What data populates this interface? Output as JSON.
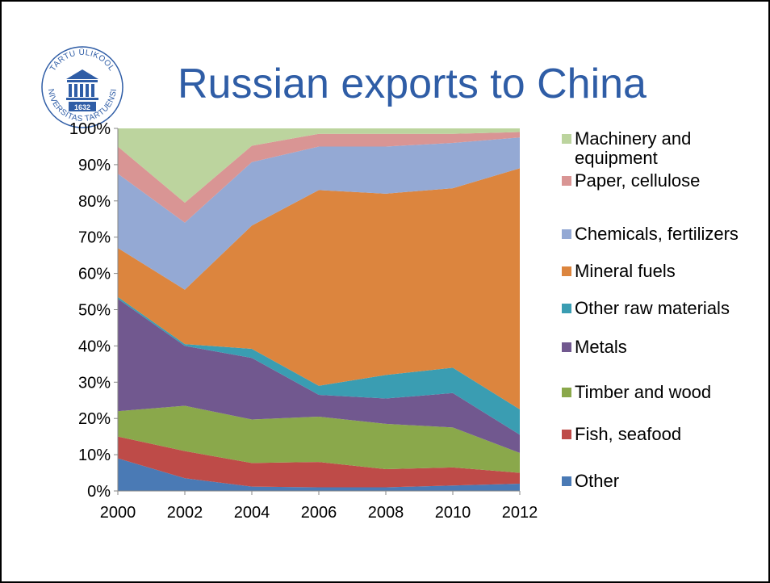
{
  "slide": {
    "title": "Russian exports to China",
    "logo": {
      "ring_text": "TARTU ÜLIKOOL · UNIVERSITAS TARTUENSIS",
      "year": "1632",
      "icon": "university-building-icon",
      "color": "#2f5da6"
    }
  },
  "chart_data": {
    "type": "area",
    "stacked": true,
    "percent": true,
    "x": [
      2000,
      2002,
      2004,
      2006,
      2008,
      2010,
      2012
    ],
    "ylim": [
      0,
      100
    ],
    "yticks": [
      "0%",
      "10%",
      "20%",
      "30%",
      "40%",
      "50%",
      "60%",
      "70%",
      "80%",
      "90%",
      "100%"
    ],
    "xticks": [
      "2000",
      "2002",
      "2004",
      "2006",
      "2008",
      "2010",
      "2012"
    ],
    "grid": false,
    "legend_position": "right",
    "title": "",
    "xlabel": "",
    "ylabel": "",
    "series": [
      {
        "name": "Other",
        "color": "#4a7ab5",
        "values": [
          9,
          3.5,
          1.2,
          1,
          1,
          1.5,
          2
        ]
      },
      {
        "name": "Fish, seafood",
        "color": "#be4b48",
        "values": [
          6,
          7.5,
          6.5,
          7,
          5,
          5,
          3
        ]
      },
      {
        "name": "Timber and wood",
        "color": "#8aa84b",
        "values": [
          7,
          12.5,
          12,
          12.5,
          12.5,
          11,
          5.5
        ]
      },
      {
        "name": "Metals",
        "color": "#71588f",
        "values": [
          31,
          16.5,
          17,
          6,
          7,
          9.5,
          5
        ]
      },
      {
        "name": "Other raw materials",
        "color": "#3a9db2",
        "values": [
          0.5,
          0.5,
          2.5,
          2.5,
          6.5,
          7,
          7
        ]
      },
      {
        "name": "Mineral fuels",
        "color": "#dc853e",
        "values": [
          13.5,
          15,
          34,
          54,
          50,
          49.5,
          66.5
        ]
      },
      {
        "name": "Chemicals, fertilizers",
        "color": "#94a9d4",
        "values": [
          20.5,
          18.5,
          17.5,
          12,
          13,
          12.5,
          8.5
        ]
      },
      {
        "name": "Paper, cellulose",
        "color": "#d99594",
        "values": [
          7.5,
          5.5,
          4.5,
          3.5,
          3.5,
          2.5,
          1.5
        ]
      },
      {
        "name": "Machinery and equipment",
        "color": "#bcd49e",
        "values": [
          5,
          20.5,
          4.8,
          1.5,
          1.5,
          1.5,
          1
        ]
      }
    ]
  }
}
